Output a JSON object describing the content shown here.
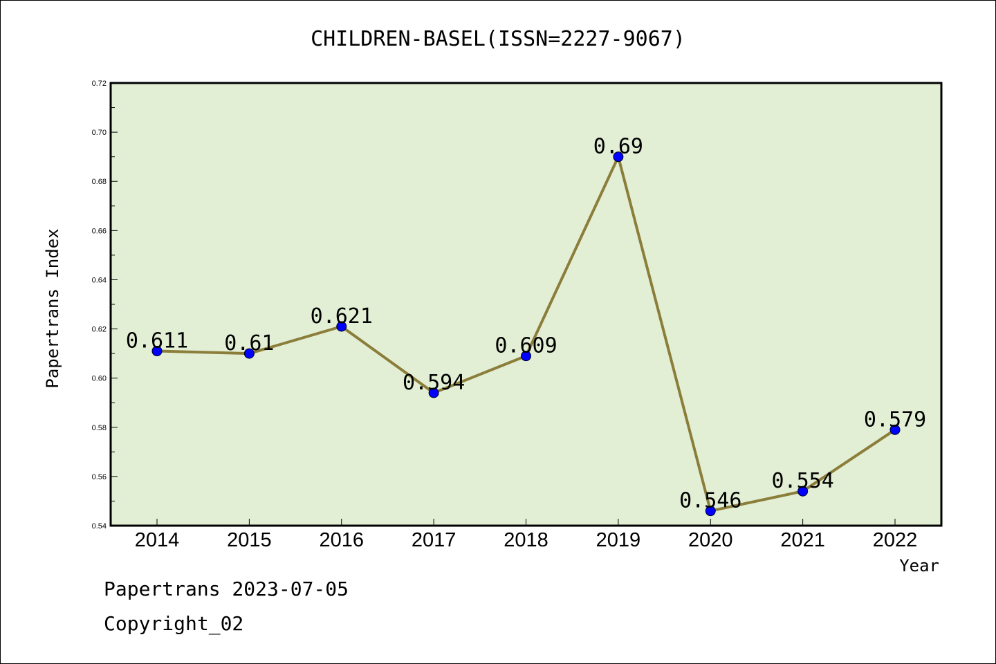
{
  "chart_data": {
    "type": "line",
    "title": "CHILDREN-BASEL(ISSN=2227-9067)",
    "xlabel": "Year",
    "ylabel": "Papertrans Index",
    "categories": [
      "2014",
      "2015",
      "2016",
      "2017",
      "2018",
      "2019",
      "2020",
      "2021",
      "2022"
    ],
    "series": [
      {
        "values": [
          0.611,
          0.61,
          0.621,
          0.594,
          0.609,
          0.69,
          0.546,
          0.554,
          0.579
        ],
        "labels": [
          "0.611",
          "0.61",
          "0.621",
          "0.594",
          "0.609",
          "0.69",
          "0.546",
          "0.554",
          "0.579"
        ]
      }
    ],
    "ylim": [
      0.54,
      0.72
    ],
    "yticks": [
      "0.54",
      "0.56",
      "0.58",
      "0.60",
      "0.62",
      "0.64",
      "0.66",
      "0.68",
      "0.70",
      "0.72"
    ],
    "grid": false,
    "legend": "none"
  },
  "colors": {
    "plot_background": "#e2efd5",
    "line": "#8b7d3a",
    "marker": "#0000ff",
    "axis": "#000000"
  },
  "footer": {
    "date_line": "Papertrans 2023-07-05",
    "copyright_line": "Copyright_02"
  }
}
